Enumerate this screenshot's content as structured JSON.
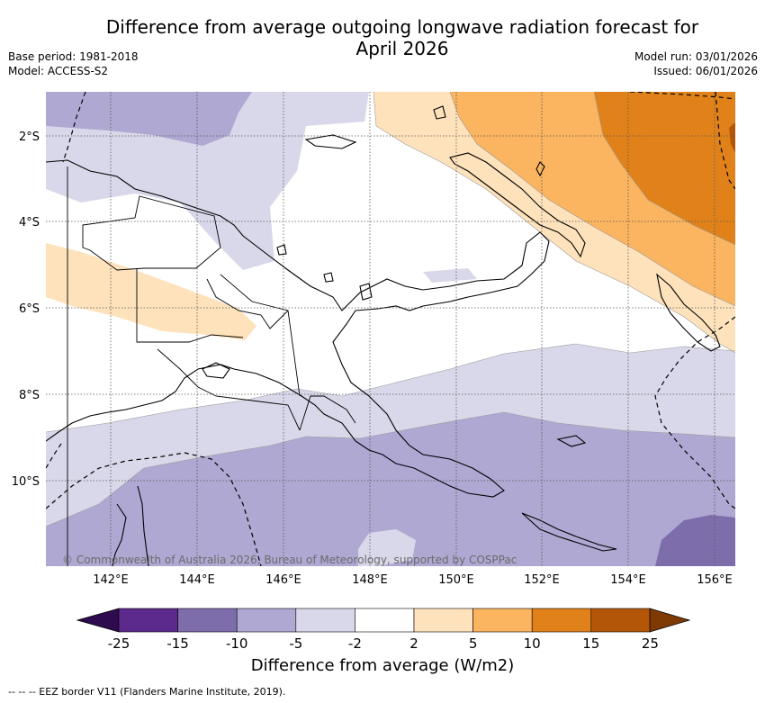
{
  "title_line1": "Difference from average outgoing longwave radiation forecast for",
  "title_line2": "April 2026",
  "meta_left": {
    "base_period": "Base period: 1981-2018",
    "model": "Model: ACCESS-S2"
  },
  "meta_right": {
    "model_run": "Model run: 03/01/2026",
    "issued": "Issued: 06/01/2026"
  },
  "lat_ticks": [
    "2°S",
    "4°S",
    "6°S",
    "8°S",
    "10°S"
  ],
  "lon_ticks": [
    "142°E",
    "144°E",
    "146°E",
    "148°E",
    "150°E",
    "152°E",
    "154°E",
    "156°E"
  ],
  "copyright": "© Commonwealth of Australia 2026, Bureau of Meteorology, supported by COSPPac",
  "colorbar": {
    "title": "Difference from average (W/m2)",
    "labels": [
      "-25",
      "-15",
      "-10",
      "-5",
      "-2",
      "2",
      "5",
      "10",
      "15",
      "25"
    ],
    "colors": {
      "extend_low": "#2e0b4e",
      "c1": "#5c2a8c",
      "c2": "#7e6dab",
      "c3": "#afa8d2",
      "c4": "#d8d8ea",
      "c5": "#ffffff",
      "c6": "#fde2bb",
      "c7": "#fbb45f",
      "c8": "#e08219",
      "c9": "#b45608",
      "extend_high": "#7f3a04"
    }
  },
  "footer": "--  --  -- EEZ border V11 (Flanders Marine Institute, 2019)."
}
